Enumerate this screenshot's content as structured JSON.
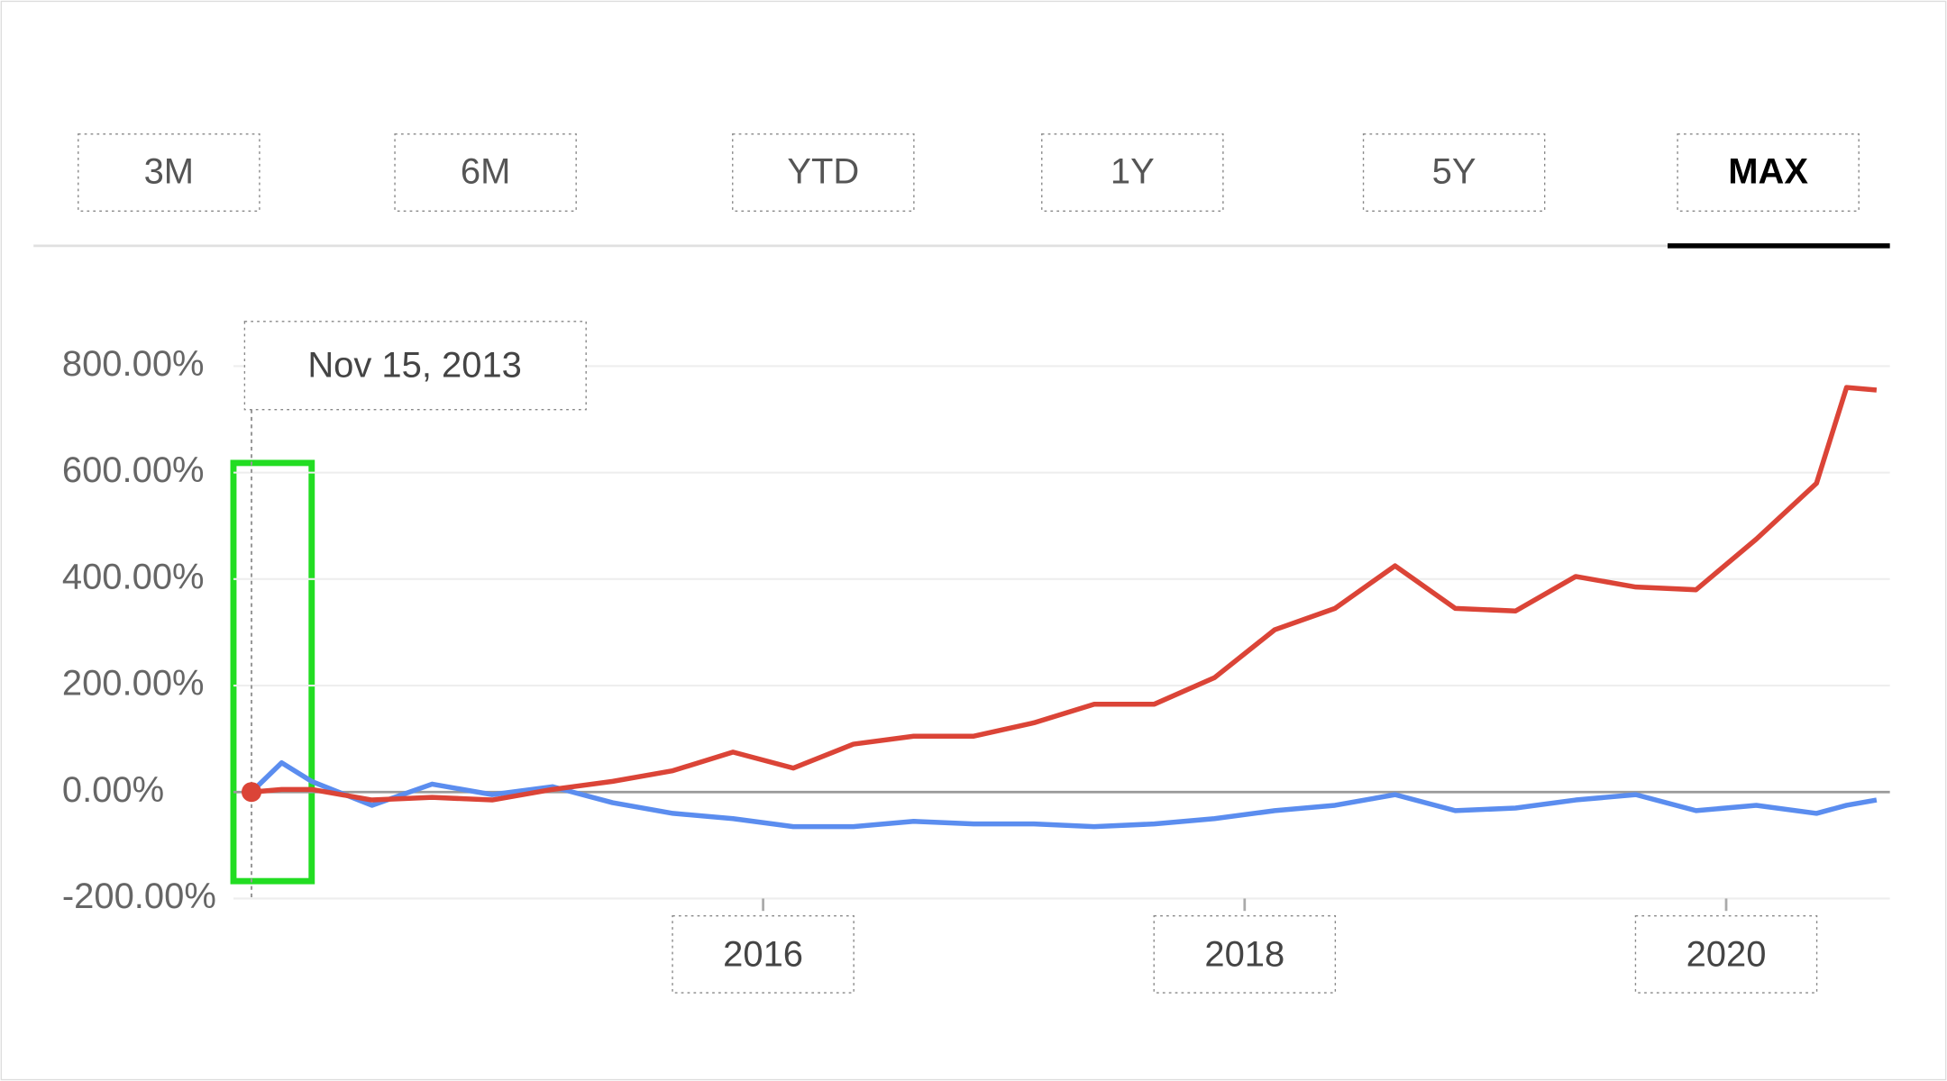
{
  "tabs": [
    "3M",
    "6M",
    "YTD",
    "1Y",
    "5Y",
    "MAX"
  ],
  "active_tab": 5,
  "chart_data": {
    "type": "line",
    "tooltip": "Nov 15, 2013",
    "x": [
      2013.875,
      2014.0,
      2014.125,
      2014.375,
      2014.625,
      2014.875,
      2015.125,
      2015.375,
      2015.625,
      2015.875,
      2016.125,
      2016.375,
      2016.625,
      2016.875,
      2017.125,
      2017.375,
      2017.625,
      2017.875,
      2018.125,
      2018.375,
      2018.625,
      2018.875,
      2019.125,
      2019.375,
      2019.625,
      2019.875,
      2020.125,
      2020.375,
      2020.5,
      2020.625
    ],
    "series": [
      {
        "color": "#5b8def",
        "values": [
          0,
          55,
          20,
          -25,
          15,
          -5,
          10,
          -20,
          -40,
          -50,
          -65,
          -65,
          -55,
          -60,
          -60,
          -65,
          -60,
          -50,
          -35,
          -25,
          -5,
          -35,
          -30,
          -15,
          -5,
          -35,
          -25,
          -40,
          -25,
          -15
        ]
      },
      {
        "color": "#db4437",
        "values": [
          0,
          5,
          5,
          -15,
          -10,
          -15,
          5,
          20,
          40,
          75,
          45,
          90,
          105,
          105,
          130,
          165,
          165,
          215,
          305,
          345,
          425,
          345,
          340,
          405,
          385,
          380,
          475,
          580,
          760,
          755
        ]
      }
    ],
    "xlim": [
      2013.8,
      2020.68
    ],
    "xticks": [
      2016,
      2018,
      2020
    ],
    "ylim": [
      -200,
      800
    ],
    "yticks": [
      {
        "value": -200,
        "label": "-200.00%"
      },
      {
        "value": 0,
        "label": "0.00%"
      },
      {
        "value": 200,
        "label": "200.00%"
      },
      {
        "value": 400,
        "label": "400.00%"
      },
      {
        "value": 600,
        "label": "600.00%"
      },
      {
        "value": 800,
        "label": "800.00%"
      }
    ],
    "grid": true
  }
}
